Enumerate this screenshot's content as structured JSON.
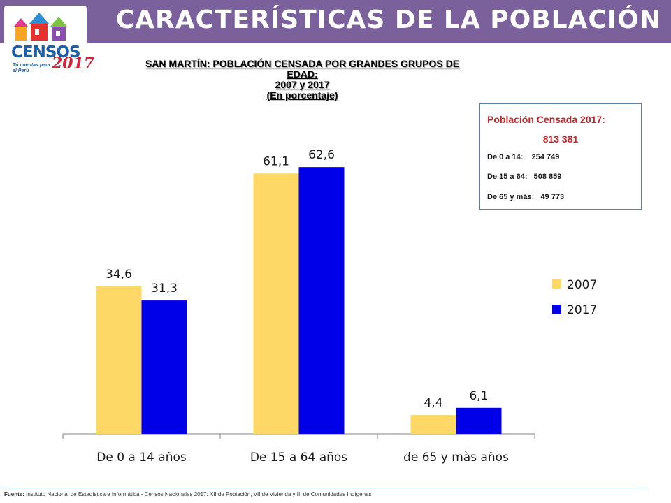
{
  "header": {
    "title": "CARACTERÍSTICAS DE LA POBLACIÓN",
    "band_color": "#7b619c"
  },
  "logo": {
    "name": "CENSOS",
    "year": "2017",
    "tagline": "Tú cuentas para el Perú"
  },
  "chart_data": {
    "type": "bar",
    "title_lines": [
      "SAN MARTÍN: POBLACIÓN CENSADA POR GRANDES GRUPOS DE",
      "EDAD:",
      "2007 y 2017",
      "(En porcentaje)"
    ],
    "categories": [
      "De 0 a 14 años",
      "De 15 a 64 años",
      "de 65 y màs años"
    ],
    "series": [
      {
        "name": "2007",
        "values": [
          34.6,
          61.1,
          4.4
        ],
        "labels": [
          "34,6",
          "61,1",
          "4,4"
        ],
        "color": "#fdd867"
      },
      {
        "name": "2017",
        "values": [
          31.3,
          62.6,
          6.1
        ],
        "labels": [
          "31,3",
          "62,6",
          "6,1"
        ],
        "color": "#0000e8"
      }
    ],
    "xlabel": "",
    "ylabel": "",
    "ylim": [
      0,
      70
    ],
    "grid": false,
    "legend_position": "right"
  },
  "info_box": {
    "heading": "Población Censada 2017:",
    "total": "813 381",
    "rows": [
      {
        "label": "De 0 a 14:",
        "value": "254 749"
      },
      {
        "label": "De 15 a 64:",
        "value": "508 859"
      },
      {
        "label": "De 65 y más:",
        "value": "49 773"
      }
    ]
  },
  "footer": {
    "source_label": "Fuente:",
    "source_text": "Instituto Nacional de Estadística e Informática - Censos Nacionales 2017: XII de Población, VII de Vivienda y III de Comunidades Indígenas"
  }
}
